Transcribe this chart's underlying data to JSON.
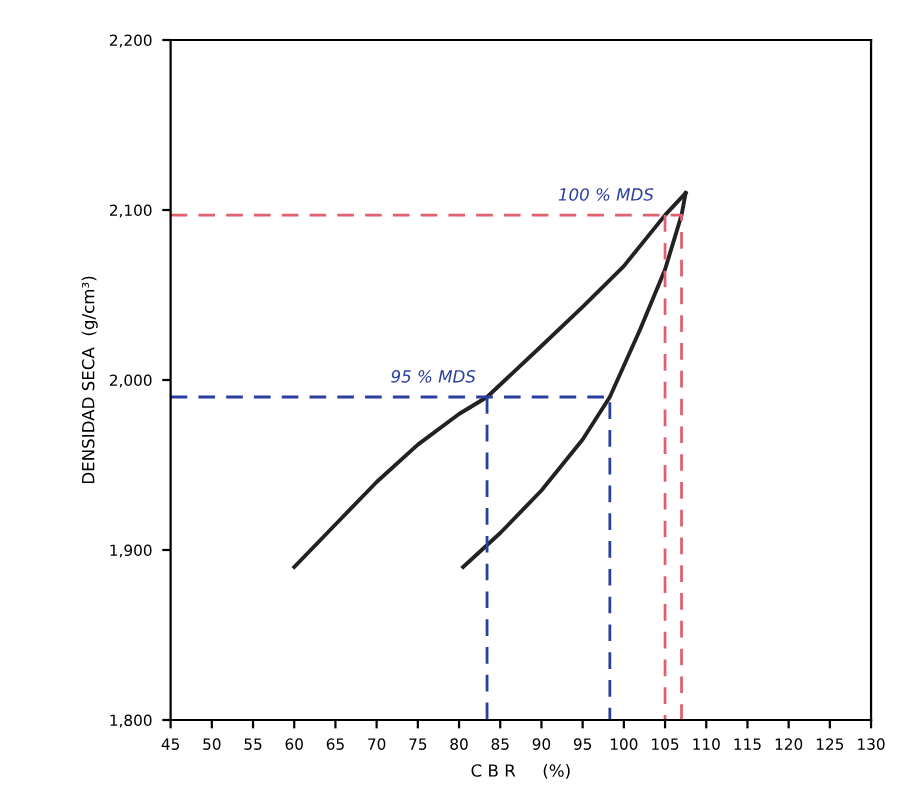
{
  "chart_data": {
    "type": "line",
    "xlabel": "C B R     (%)",
    "ylabel": "DENSIDAD SECA  (g/cm³)",
    "series": [
      {
        "color": "#222222",
        "line_style": "solid",
        "x": [
          60,
          65,
          70,
          75,
          80,
          83.4,
          90,
          95,
          100,
          105,
          107.5
        ],
        "values": [
          1890,
          1915,
          1940,
          1962,
          1980,
          1990,
          2020,
          2043,
          2067,
          2097,
          2110
        ]
      },
      {
        "color": "#222222",
        "line_style": "solid",
        "x": [
          80.5,
          85,
          90,
          95,
          98.3,
          102,
          105,
          107,
          107.5
        ],
        "values": [
          1890,
          1910,
          1935,
          1965,
          1990,
          2030,
          2065,
          2097,
          2110
        ]
      },
      {
        "color": "#2b3f9e",
        "line_style": "dashed",
        "x": [
          45,
          98.3,
          98.3
        ],
        "values": [
          1990,
          1990,
          1800
        ]
      },
      {
        "color": "#2b3f9e",
        "line_style": "dashed",
        "x": [
          83.4,
          83.4
        ],
        "values": [
          1990,
          1800
        ]
      },
      {
        "color": "#e06070",
        "line_style": "dashed",
        "x": [
          45,
          107,
          107,
          107
        ],
        "values": [
          2097,
          2097,
          2097,
          1800
        ]
      },
      {
        "color": "#e06070",
        "line_style": "dashed",
        "x": [
          105,
          105
        ],
        "values": [
          2097,
          1800
        ]
      }
    ],
    "annotations": [
      {
        "text": "95 % MDS",
        "x": 83.4,
        "y": 1990
      },
      {
        "text": "100 % MDS",
        "x": 105,
        "y": 2097
      }
    ],
    "xlim": [
      45,
      130
    ],
    "xticks": [
      45,
      50,
      55,
      60,
      65,
      70,
      75,
      80,
      85,
      90,
      95,
      100,
      105,
      110,
      115,
      120,
      125,
      130
    ],
    "ylim": [
      1800,
      2200
    ],
    "yticks": [
      {
        "value": 1800,
        "label": "1,800"
      },
      {
        "value": 1900,
        "label": "1,900"
      },
      {
        "value": 2000,
        "label": "2,000"
      },
      {
        "value": 2100,
        "label": "2,100"
      },
      {
        "value": 2200,
        "label": "2,200"
      }
    ],
    "grid": false,
    "legend": false,
    "marker": "none"
  }
}
